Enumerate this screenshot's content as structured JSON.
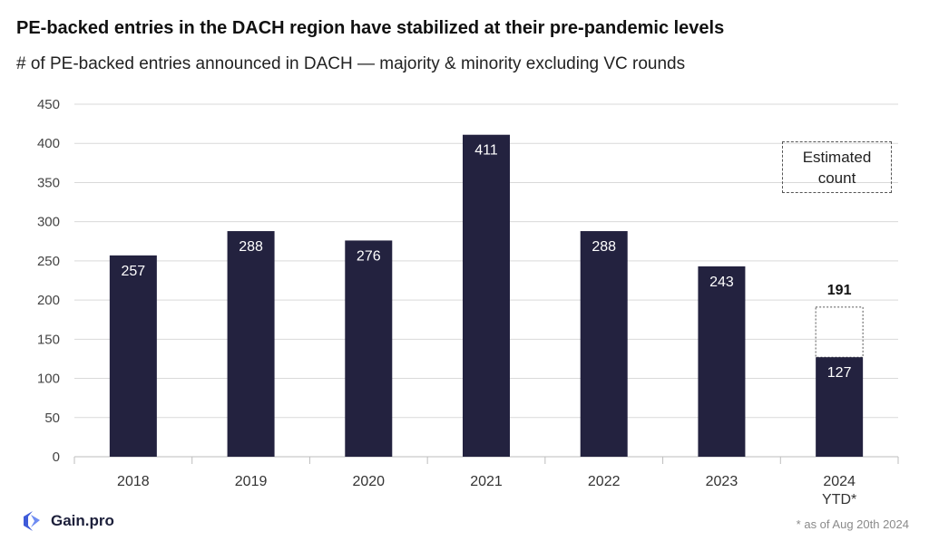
{
  "header": {
    "title": "PE-backed entries in the DACH region have stabilized at their pre-pandemic levels",
    "subtitle": "# of PE-backed entries announced in DACH — majority & minority excluding VC rounds"
  },
  "legend": {
    "estimated_line1": "Estimated",
    "estimated_line2": "count"
  },
  "brand": {
    "name": "Gain.pro",
    "logo_icon": "gain-pro-logo-icon"
  },
  "footnote": "* as of Aug 20th 2024",
  "colors": {
    "bar": "#23223f",
    "grid": "#d9d9d9",
    "axis": "#bdbdbd"
  },
  "chart_data": {
    "type": "bar",
    "categories": [
      "2018",
      "2019",
      "2020",
      "2021",
      "2022",
      "2023",
      "2024 YTD*"
    ],
    "category_lines": [
      [
        "2018"
      ],
      [
        "2019"
      ],
      [
        "2020"
      ],
      [
        "2021"
      ],
      [
        "2022"
      ],
      [
        "2023"
      ],
      [
        "2024",
        "YTD*"
      ]
    ],
    "values": [
      257,
      288,
      276,
      411,
      288,
      243,
      127
    ],
    "estimated": [
      null,
      null,
      null,
      null,
      null,
      null,
      191
    ],
    "ylim": [
      0,
      450
    ],
    "yticks": [
      0,
      50,
      100,
      150,
      200,
      250,
      300,
      350,
      400,
      450
    ],
    "grid": true,
    "legend_position": "top-right"
  }
}
